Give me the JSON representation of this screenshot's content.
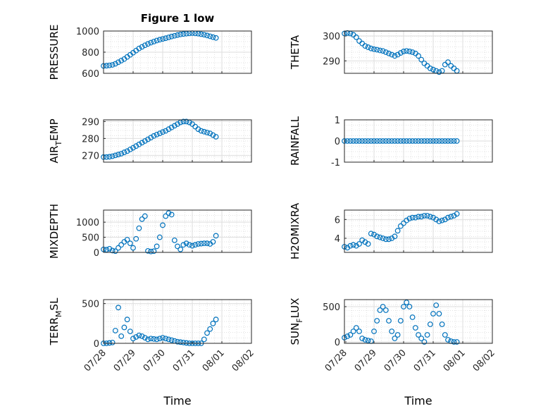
{
  "figure": {
    "title": "Figure 1 low",
    "marker_color": "#0072BD",
    "x_ticks": [
      "07/28",
      "07/29",
      "07/30",
      "07/31",
      "08/01",
      "08/02"
    ],
    "xlabel": "Time"
  },
  "chart_data": [
    {
      "type": "scatter",
      "ylabel": "PRESSURE",
      "ylabel_sub": "",
      "ylim": [
        600,
        1000
      ],
      "yticks": [
        600,
        800,
        1000
      ],
      "grid": true,
      "minor_grid": true,
      "xlim": [
        0,
        5
      ],
      "x": [
        0.0,
        0.1,
        0.2,
        0.3,
        0.4,
        0.5,
        0.6,
        0.7,
        0.8,
        0.9,
        1.0,
        1.1,
        1.2,
        1.3,
        1.4,
        1.5,
        1.6,
        1.7,
        1.8,
        1.9,
        2.0,
        2.1,
        2.2,
        2.3,
        2.4,
        2.5,
        2.6,
        2.7,
        2.8,
        2.9,
        3.0,
        3.1,
        3.2,
        3.3,
        3.4,
        3.5,
        3.6,
        3.7,
        3.8
      ],
      "y": [
        670,
        672,
        675,
        680,
        690,
        705,
        720,
        735,
        755,
        775,
        795,
        815,
        835,
        850,
        865,
        878,
        890,
        900,
        910,
        918,
        925,
        932,
        940,
        948,
        955,
        962,
        968,
        972,
        975,
        978,
        980,
        978,
        975,
        970,
        965,
        958,
        950,
        942,
        935
      ]
    },
    {
      "type": "scatter",
      "ylabel": "THETA",
      "ylabel_sub": "",
      "ylim": [
        285,
        302
      ],
      "yticks": [
        290,
        300
      ],
      "grid": true,
      "minor_grid": true,
      "xlim": [
        0,
        5
      ],
      "x": [
        0.0,
        0.1,
        0.2,
        0.3,
        0.4,
        0.5,
        0.6,
        0.7,
        0.8,
        0.9,
        1.0,
        1.1,
        1.2,
        1.3,
        1.4,
        1.5,
        1.6,
        1.7,
        1.8,
        1.9,
        2.0,
        2.1,
        2.2,
        2.3,
        2.4,
        2.5,
        2.6,
        2.7,
        2.8,
        2.9,
        3.0,
        3.1,
        3.2,
        3.3,
        3.4,
        3.5,
        3.6,
        3.7,
        3.8
      ],
      "y": [
        301,
        301.2,
        301,
        300.5,
        299.5,
        298,
        297,
        296,
        295.5,
        295,
        294.7,
        294.5,
        294.2,
        294,
        293.5,
        293,
        292.5,
        292,
        292.5,
        293.2,
        293.8,
        294,
        293.8,
        293.5,
        293,
        292,
        290.5,
        289,
        288,
        287,
        286.5,
        286,
        285.5,
        286,
        288.5,
        289.5,
        288,
        287,
        286
      ]
    },
    {
      "type": "scatter",
      "ylabel": "AIR",
      "ylabel_sub": "T",
      "ylabel_rest": "EMP",
      "ylim": [
        266,
        291
      ],
      "yticks": [
        270,
        280,
        290
      ],
      "grid": true,
      "minor_grid": true,
      "xlim": [
        0,
        5
      ],
      "x": [
        0.0,
        0.1,
        0.2,
        0.3,
        0.4,
        0.5,
        0.6,
        0.7,
        0.8,
        0.9,
        1.0,
        1.1,
        1.2,
        1.3,
        1.4,
        1.5,
        1.6,
        1.7,
        1.8,
        1.9,
        2.0,
        2.1,
        2.2,
        2.3,
        2.4,
        2.5,
        2.6,
        2.7,
        2.8,
        2.9,
        3.0,
        3.1,
        3.2,
        3.3,
        3.4,
        3.5,
        3.6,
        3.7,
        3.8
      ],
      "y": [
        269,
        269,
        269.2,
        269.5,
        270,
        270.5,
        271,
        271.8,
        272.5,
        273.5,
        274.5,
        275.5,
        276.5,
        277.5,
        278.5,
        279.5,
        280.5,
        281.5,
        282.3,
        283,
        283.8,
        284.5,
        285.5,
        286.5,
        287.5,
        288.5,
        289.5,
        290,
        290,
        289.5,
        288.5,
        287,
        285.5,
        284.5,
        284,
        283.5,
        283,
        282,
        281
      ]
    },
    {
      "type": "scatter",
      "ylabel": "RAINFALL",
      "ylabel_sub": "",
      "ylim": [
        -1,
        1
      ],
      "yticks": [
        -1,
        0,
        1
      ],
      "grid": true,
      "minor_grid": true,
      "xlim": [
        0,
        5
      ],
      "x": [
        0.0,
        0.1,
        0.2,
        0.3,
        0.4,
        0.5,
        0.6,
        0.7,
        0.8,
        0.9,
        1.0,
        1.1,
        1.2,
        1.3,
        1.4,
        1.5,
        1.6,
        1.7,
        1.8,
        1.9,
        2.0,
        2.1,
        2.2,
        2.3,
        2.4,
        2.5,
        2.6,
        2.7,
        2.8,
        2.9,
        3.0,
        3.1,
        3.2,
        3.3,
        3.4,
        3.5,
        3.6,
        3.7,
        3.8
      ],
      "y": [
        0,
        0,
        0,
        0,
        0,
        0,
        0,
        0,
        0,
        0,
        0,
        0,
        0,
        0,
        0,
        0,
        0,
        0,
        0,
        0,
        0,
        0,
        0,
        0,
        0,
        0,
        0,
        0,
        0,
        0,
        0,
        0,
        0,
        0,
        0,
        0,
        0,
        0,
        0
      ]
    },
    {
      "type": "scatter",
      "ylabel": "MIXDEPTH",
      "ylabel_sub": "",
      "ylim": [
        0,
        1400
      ],
      "yticks": [
        0,
        500,
        1000
      ],
      "grid": true,
      "minor_grid": true,
      "xlim": [
        0,
        5
      ],
      "x": [
        0.0,
        0.1,
        0.2,
        0.3,
        0.4,
        0.5,
        0.6,
        0.7,
        0.8,
        0.9,
        1.0,
        1.1,
        1.2,
        1.3,
        1.4,
        1.5,
        1.6,
        1.7,
        1.8,
        1.9,
        2.0,
        2.1,
        2.2,
        2.3,
        2.4,
        2.5,
        2.6,
        2.7,
        2.8,
        2.9,
        3.0,
        3.1,
        3.2,
        3.3,
        3.4,
        3.5,
        3.6,
        3.7,
        3.8
      ],
      "y": [
        100,
        90,
        120,
        60,
        40,
        150,
        250,
        350,
        420,
        300,
        150,
        450,
        800,
        1100,
        1200,
        50,
        30,
        40,
        200,
        500,
        900,
        1200,
        1300,
        1250,
        400,
        200,
        100,
        250,
        300,
        250,
        220,
        250,
        280,
        290,
        300,
        300,
        280,
        350,
        550
      ]
    },
    {
      "type": "scatter",
      "ylabel": "H2OMIXRA",
      "ylabel_sub": "",
      "ylim": [
        2.5,
        7
      ],
      "yticks": [
        4,
        6
      ],
      "grid": true,
      "minor_grid": true,
      "xlim": [
        0,
        5
      ],
      "x": [
        0.0,
        0.1,
        0.2,
        0.3,
        0.4,
        0.5,
        0.6,
        0.7,
        0.8,
        0.9,
        1.0,
        1.1,
        1.2,
        1.3,
        1.4,
        1.5,
        1.6,
        1.7,
        1.8,
        1.9,
        2.0,
        2.1,
        2.2,
        2.3,
        2.4,
        2.5,
        2.6,
        2.7,
        2.8,
        2.9,
        3.0,
        3.1,
        3.2,
        3.3,
        3.4,
        3.5,
        3.6,
        3.7,
        3.8
      ],
      "y": [
        3.1,
        3.0,
        3.2,
        3.3,
        3.2,
        3.4,
        3.8,
        3.6,
        3.4,
        4.5,
        4.4,
        4.2,
        4.1,
        4.0,
        3.9,
        3.9,
        4.0,
        4.2,
        4.8,
        5.3,
        5.6,
        5.9,
        6.1,
        6.2,
        6.2,
        6.3,
        6.3,
        6.4,
        6.4,
        6.3,
        6.2,
        6.0,
        5.8,
        5.9,
        6.0,
        6.2,
        6.3,
        6.4,
        6.6
      ]
    },
    {
      "type": "scatter",
      "ylabel": "TERR",
      "ylabel_sub": "M",
      "ylabel_rest": "SL",
      "ylim": [
        0,
        550
      ],
      "yticks": [
        0,
        500
      ],
      "grid": true,
      "minor_grid": true,
      "xlim": [
        0,
        5
      ],
      "x": [
        0.0,
        0.1,
        0.2,
        0.3,
        0.4,
        0.5,
        0.6,
        0.7,
        0.8,
        0.9,
        1.0,
        1.1,
        1.2,
        1.3,
        1.4,
        1.5,
        1.6,
        1.7,
        1.8,
        1.9,
        2.0,
        2.1,
        2.2,
        2.3,
        2.4,
        2.5,
        2.6,
        2.7,
        2.8,
        2.9,
        3.0,
        3.1,
        3.2,
        3.3,
        3.4,
        3.5,
        3.6,
        3.7,
        3.8
      ],
      "y": [
        0,
        0,
        5,
        10,
        160,
        450,
        90,
        200,
        300,
        150,
        60,
        80,
        100,
        90,
        70,
        50,
        60,
        55,
        50,
        60,
        70,
        60,
        50,
        40,
        30,
        20,
        15,
        10,
        5,
        0,
        0,
        0,
        0,
        0,
        50,
        130,
        180,
        250,
        300
      ]
    },
    {
      "type": "scatter",
      "ylabel": "SUN",
      "ylabel_sub": "F",
      "ylabel_rest": "LUX",
      "ylim": [
        -20,
        600
      ],
      "yticks": [
        0,
        500
      ],
      "grid": true,
      "minor_grid": true,
      "xlim": [
        0,
        5
      ],
      "x": [
        0.0,
        0.1,
        0.2,
        0.3,
        0.4,
        0.5,
        0.6,
        0.7,
        0.8,
        0.9,
        1.0,
        1.1,
        1.2,
        1.3,
        1.4,
        1.5,
        1.6,
        1.7,
        1.8,
        1.9,
        2.0,
        2.1,
        2.2,
        2.3,
        2.4,
        2.5,
        2.6,
        2.7,
        2.8,
        2.9,
        3.0,
        3.1,
        3.2,
        3.3,
        3.4,
        3.5,
        3.6,
        3.7,
        3.8
      ],
      "y": [
        60,
        80,
        100,
        150,
        200,
        150,
        50,
        30,
        20,
        10,
        150,
        300,
        450,
        500,
        450,
        300,
        150,
        50,
        100,
        300,
        500,
        560,
        500,
        350,
        200,
        100,
        50,
        0,
        100,
        250,
        400,
        520,
        400,
        250,
        100,
        30,
        10,
        0,
        0
      ]
    }
  ]
}
